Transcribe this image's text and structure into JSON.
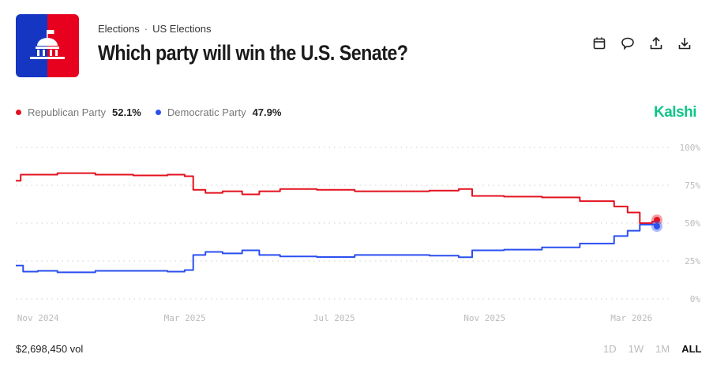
{
  "header": {
    "breadcrumb": [
      "Elections",
      "US Elections"
    ],
    "title": "Which party will win the U.S. Senate?",
    "icons": [
      "calendar-icon",
      "comment-icon",
      "share-icon",
      "download-icon"
    ]
  },
  "brand": "Kalshi",
  "colors": {
    "republican": "#e4111f",
    "democratic": "#2a4ff0",
    "brand": "#10c58a",
    "logo_left": "#1436c2",
    "logo_right": "#e8001f"
  },
  "legend": [
    {
      "name": "Republican Party",
      "value": "52.1%"
    },
    {
      "name": "Democratic Party",
      "value": "47.9%"
    }
  ],
  "footer": {
    "volume": "$2,698,450 vol",
    "ranges": [
      "1D",
      "1W",
      "1M",
      "ALL"
    ],
    "active_range": "ALL"
  },
  "chart_data": {
    "type": "line",
    "ylim": [
      0,
      100
    ],
    "yticks": [
      "100%",
      "75%",
      "50%",
      "25%",
      "0%"
    ],
    "xticks": [
      "Nov 2024",
      "Mar 2025",
      "Jul 2025",
      "Nov 2025",
      "Mar 2026"
    ],
    "grid": true,
    "series": [
      {
        "name": "Republican Party",
        "points": [
          [
            "2024-10-28",
            78
          ],
          [
            "2024-11-01",
            82
          ],
          [
            "2024-11-15",
            82
          ],
          [
            "2024-12-01",
            83
          ],
          [
            "2025-01-01",
            82
          ],
          [
            "2025-02-01",
            81.5
          ],
          [
            "2025-03-01",
            82
          ],
          [
            "2025-03-15",
            81
          ],
          [
            "2025-03-22",
            72
          ],
          [
            "2025-04-01",
            70
          ],
          [
            "2025-04-15",
            71
          ],
          [
            "2025-05-01",
            69
          ],
          [
            "2025-05-15",
            71
          ],
          [
            "2025-06-01",
            72.5
          ],
          [
            "2025-07-01",
            72
          ],
          [
            "2025-08-01",
            71
          ],
          [
            "2025-09-01",
            71
          ],
          [
            "2025-10-01",
            71.5
          ],
          [
            "2025-10-25",
            72.5
          ],
          [
            "2025-11-05",
            68
          ],
          [
            "2025-12-01",
            67.5
          ],
          [
            "2026-01-01",
            67
          ],
          [
            "2026-02-01",
            64.5
          ],
          [
            "2026-03-01",
            61
          ],
          [
            "2026-03-12",
            57
          ],
          [
            "2026-03-22",
            50
          ],
          [
            "2026-04-01",
            51
          ],
          [
            "2026-04-05",
            52.1
          ]
        ]
      },
      {
        "name": "Democratic Party",
        "points": [
          [
            "2024-10-28",
            22
          ],
          [
            "2024-11-03",
            18
          ],
          [
            "2024-11-15",
            18.5
          ],
          [
            "2024-12-01",
            17.5
          ],
          [
            "2025-01-01",
            18.5
          ],
          [
            "2025-02-01",
            18.5
          ],
          [
            "2025-03-01",
            18
          ],
          [
            "2025-03-15",
            19
          ],
          [
            "2025-03-22",
            29
          ],
          [
            "2025-04-01",
            31
          ],
          [
            "2025-04-15",
            30
          ],
          [
            "2025-05-01",
            32
          ],
          [
            "2025-05-15",
            29
          ],
          [
            "2025-06-01",
            28
          ],
          [
            "2025-07-01",
            27.6
          ],
          [
            "2025-08-01",
            29
          ],
          [
            "2025-09-01",
            29
          ],
          [
            "2025-10-01",
            28.5
          ],
          [
            "2025-10-25",
            27.5
          ],
          [
            "2025-11-05",
            32
          ],
          [
            "2025-12-01",
            32.5
          ],
          [
            "2026-01-01",
            34
          ],
          [
            "2026-02-01",
            36.5
          ],
          [
            "2026-03-01",
            41.5
          ],
          [
            "2026-03-12",
            45
          ],
          [
            "2026-03-22",
            49
          ],
          [
            "2026-04-01",
            49
          ],
          [
            "2026-04-05",
            47.9
          ]
        ]
      }
    ]
  }
}
